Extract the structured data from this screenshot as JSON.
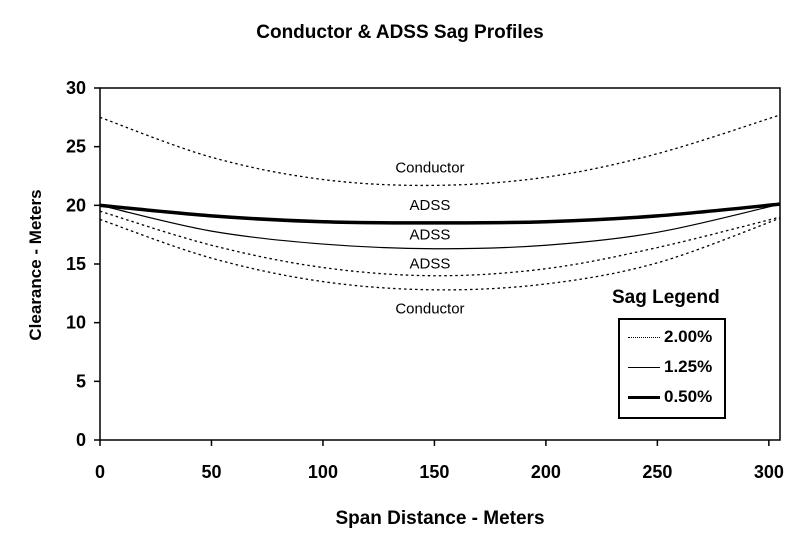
{
  "chart_data": {
    "type": "line",
    "title": "Conductor & ADSS Sag Profiles",
    "xlabel": "Span Distance - Meters",
    "ylabel": "Clearance - Meters",
    "xlim": [
      0,
      305
    ],
    "ylim": [
      0,
      30
    ],
    "xticks": [
      0,
      50,
      100,
      150,
      200,
      250,
      300
    ],
    "yticks": [
      0,
      5,
      10,
      15,
      20,
      25,
      30
    ],
    "grid": false,
    "series": [
      {
        "name": "Conductor",
        "legend": "2.00%",
        "style": "dotted",
        "x": [
          0,
          50,
          100,
          150,
          200,
          250,
          305
        ],
        "y": [
          27.5,
          24.1,
          22.2,
          21.7,
          22.4,
          24.4,
          27.7
        ]
      },
      {
        "name": "ADSS",
        "legend": "0.50%",
        "style": "thick",
        "x": [
          0,
          50,
          100,
          150,
          200,
          250,
          305
        ],
        "y": [
          20.0,
          19.1,
          18.6,
          18.5,
          18.6,
          19.1,
          20.1
        ]
      },
      {
        "name": "ADSS",
        "legend": "1.25%",
        "style": "solid",
        "x": [
          0,
          50,
          100,
          150,
          200,
          250,
          305
        ],
        "y": [
          20.0,
          17.8,
          16.7,
          16.3,
          16.6,
          17.7,
          20.1
        ]
      },
      {
        "name": "ADSS",
        "legend": "2.00%",
        "style": "dotted",
        "x": [
          0,
          50,
          100,
          150,
          200,
          250,
          305
        ],
        "y": [
          19.5,
          16.6,
          14.7,
          14.0,
          14.6,
          16.4,
          19.0
        ]
      },
      {
        "name": "Conductor",
        "legend": "2.00%",
        "style": "dotted",
        "x": [
          0,
          50,
          100,
          150,
          200,
          250,
          305
        ],
        "y": [
          18.8,
          15.5,
          13.5,
          12.8,
          13.3,
          15.1,
          18.9
        ]
      }
    ],
    "annotations": [
      {
        "text": "Conductor",
        "x": 148,
        "y": 22.8
      },
      {
        "text": "ADSS",
        "x": 148,
        "y": 19.6
      },
      {
        "text": "ADSS",
        "x": 148,
        "y": 17.1
      },
      {
        "text": "ADSS",
        "x": 148,
        "y": 14.6
      },
      {
        "text": "Conductor",
        "x": 148,
        "y": 10.8
      }
    ],
    "legend": {
      "title": "Sag Legend",
      "placement": "right",
      "entries": [
        {
          "label": "2.00%",
          "style": "dotted"
        },
        {
          "label": "1.25%",
          "style": "solid"
        },
        {
          "label": "0.50%",
          "style": "thick"
        }
      ]
    }
  }
}
